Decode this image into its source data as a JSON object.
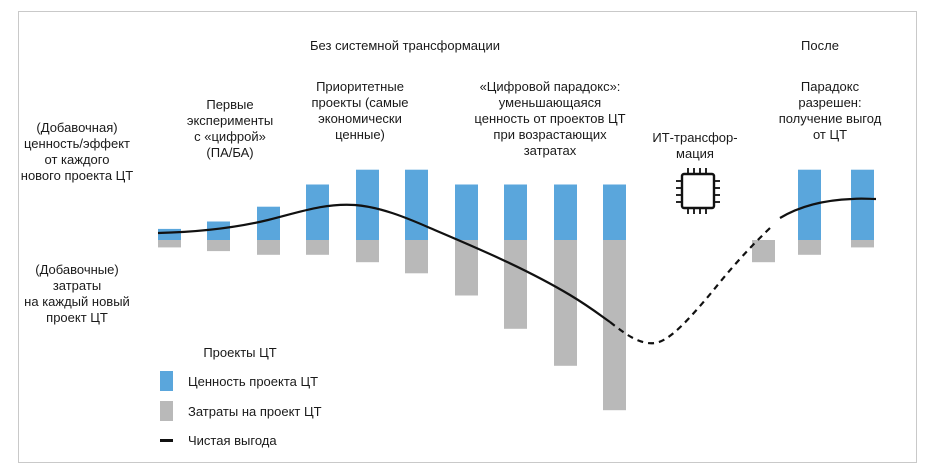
{
  "headings": {
    "without": "Без системной трансформации",
    "after": "После"
  },
  "left_labels": {
    "value": "(Добавочная)\nценность/эффект\nот каждого\nнового проекта ЦТ",
    "cost": "(Добавочные)\nзатраты\nна каждый новый\nпроект ЦТ"
  },
  "stages": {
    "first": "Первые\nэксперименты\nс «цифрой»\n(ПА/БА)",
    "priority": "Приоритетные\nпроекты (самые\nэкономически\nценные)",
    "paradox": "«Цифровой парадокс»:\nуменьшающаяся\nценность от проектов ЦТ\nпри возрастающих\nзатратах",
    "it": "ИТ-трансфор-\nмация",
    "resolved": "Парадокс\nразрешен:\nполучение выгод\nот ЦТ"
  },
  "legend": {
    "title": "Проекты ЦТ",
    "value": "Ценность проекта ЦТ",
    "cost": "Затраты на проект ЦТ",
    "net": "Чистая выгода"
  },
  "colors": {
    "value": "#5aa6dc",
    "cost": "#b9b9b9",
    "net": "#111111"
  },
  "icons": {
    "it": "cpu-chip-icon"
  },
  "projects": [
    {
      "value": 1.5,
      "cost": 1.0
    },
    {
      "value": 2.5,
      "cost": 1.5
    },
    {
      "value": 4.5,
      "cost": 2.0
    },
    {
      "value": 7.5,
      "cost": 2.0
    },
    {
      "value": 9.5,
      "cost": 3.0
    },
    {
      "value": 9.5,
      "cost": 4.5
    },
    {
      "value": 7.5,
      "cost": 7.5
    },
    {
      "value": 7.5,
      "cost": 12.0
    },
    {
      "value": 7.5,
      "cost": 17.0
    },
    {
      "value": 7.5,
      "cost": 23.0
    },
    {
      "value": 0,
      "cost": 3.0
    },
    {
      "value": 9.5,
      "cost": 2.0
    },
    {
      "value": 9.5,
      "cost": 1.0
    }
  ]
}
